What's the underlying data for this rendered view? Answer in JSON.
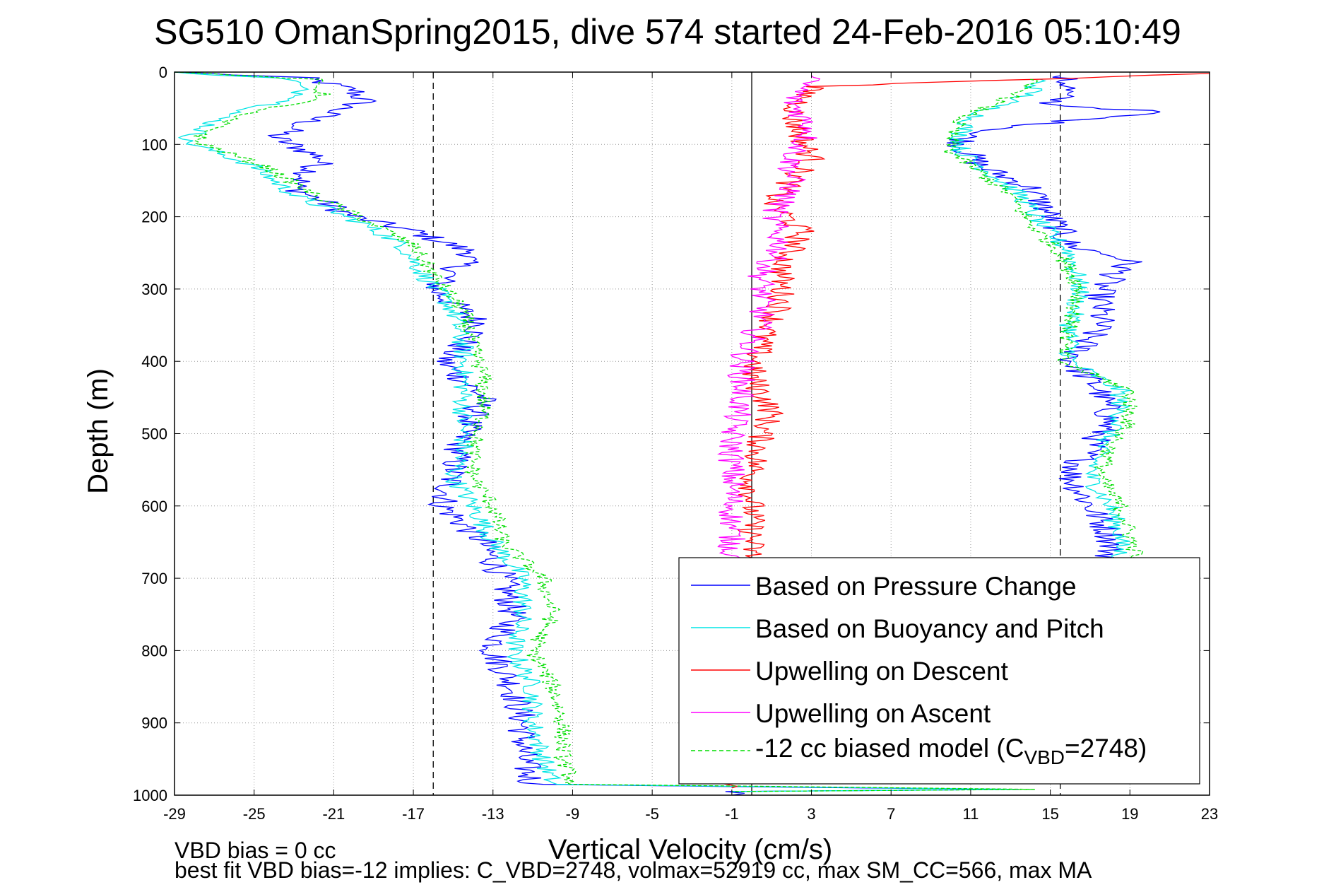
{
  "chart_data": {
    "type": "line",
    "title": "SG510 OmanSpring2015, dive 574 started 24-Feb-2016 05:10:49",
    "xlabel": "Vertical Velocity (cm/s)",
    "ylabel": "Depth (m)",
    "xlim": [
      -29,
      23
    ],
    "ylim": [
      1000,
      0
    ],
    "y_reversed": true,
    "xticks": [
      "-29",
      "-25",
      "-21",
      "-17",
      "-13",
      "-9",
      "-5",
      "-1",
      "3",
      "7",
      "11",
      "15",
      "19",
      "23"
    ],
    "yticks": [
      "0",
      "100",
      "200",
      "300",
      "400",
      "500",
      "600",
      "700",
      "800",
      "900",
      "1000"
    ],
    "grid": true,
    "legend_position": "bottom-right",
    "reference_lines": [
      {
        "x": -16,
        "style": "dashed"
      },
      {
        "x": 15.5,
        "style": "dashed"
      },
      {
        "x": 0,
        "style": "solid"
      }
    ],
    "series": [
      {
        "name": "Based on Pressure Change",
        "color": "#0000ff",
        "style": "solid",
        "points": [
          [
            -29,
            0
          ],
          [
            -22.5,
            8
          ],
          [
            -20,
            25
          ],
          [
            -19.5,
            40
          ],
          [
            -22,
            65
          ],
          [
            -24,
            90
          ],
          [
            -21.5,
            120
          ],
          [
            -23,
            160
          ],
          [
            -20,
            200
          ],
          [
            -17,
            220
          ],
          [
            -14,
            250
          ],
          [
            -16,
            300
          ],
          [
            -13.5,
            350
          ],
          [
            -15.5,
            400
          ],
          [
            -13.5,
            450
          ],
          [
            -14.5,
            500
          ],
          [
            -15,
            550
          ],
          [
            -15.5,
            600
          ],
          [
            -13.5,
            650
          ],
          [
            -12.5,
            700
          ],
          [
            -12,
            750
          ],
          [
            -13,
            800
          ],
          [
            -12,
            850
          ],
          [
            -11.5,
            900
          ],
          [
            -11.5,
            950
          ],
          [
            -11,
            985
          ],
          [
            13,
            992
          ],
          [
            -1,
            995
          ],
          [
            -1,
            1000
          ]
        ],
        "ascent_points": [
          [
            15.5,
            5
          ],
          [
            16,
            20
          ],
          [
            15,
            45
          ],
          [
            20.5,
            55
          ],
          [
            15,
            70
          ],
          [
            11,
            85
          ],
          [
            10.5,
            100
          ],
          [
            11.5,
            130
          ],
          [
            14,
            160
          ],
          [
            15,
            200
          ],
          [
            16,
            240
          ],
          [
            19,
            260
          ],
          [
            17.5,
            300
          ],
          [
            17.5,
            350
          ],
          [
            16,
            400
          ],
          [
            17.5,
            440
          ],
          [
            18,
            480
          ],
          [
            17,
            520
          ],
          [
            16,
            560
          ],
          [
            17,
            600
          ],
          [
            18,
            640
          ],
          [
            18,
            680
          ]
        ]
      },
      {
        "name": "Based on Buoyancy and Pitch",
        "color": "#00e5e5",
        "style": "solid",
        "points": [
          [
            -29,
            0
          ],
          [
            -23,
            10
          ],
          [
            -22.5,
            35
          ],
          [
            -26.5,
            60
          ],
          [
            -28.5,
            95
          ],
          [
            -25,
            130
          ],
          [
            -23,
            170
          ],
          [
            -19.5,
            210
          ],
          [
            -17.5,
            240
          ],
          [
            -16.5,
            280
          ],
          [
            -15,
            330
          ],
          [
            -14.5,
            380
          ],
          [
            -14.5,
            420
          ],
          [
            -14.5,
            480
          ],
          [
            -14.5,
            520
          ],
          [
            -15,
            560
          ],
          [
            -14,
            600
          ],
          [
            -13,
            650
          ],
          [
            -11.5,
            700
          ],
          [
            -11.5,
            750
          ],
          [
            -12,
            800
          ],
          [
            -11,
            850
          ],
          [
            -11,
            900
          ],
          [
            -10.5,
            950
          ],
          [
            -10,
            985
          ],
          [
            13,
            992
          ],
          [
            -1,
            995
          ]
        ],
        "ascent_points": [
          [
            14.5,
            10
          ],
          [
            14,
            30
          ],
          [
            12.5,
            45
          ],
          [
            11,
            65
          ],
          [
            10.5,
            85
          ],
          [
            10.5,
            110
          ],
          [
            12,
            140
          ],
          [
            13.5,
            170
          ],
          [
            14.5,
            210
          ],
          [
            16,
            250
          ],
          [
            16.5,
            300
          ],
          [
            16,
            350
          ],
          [
            16,
            400
          ],
          [
            18.5,
            440
          ],
          [
            18.5,
            480
          ],
          [
            17.5,
            520
          ],
          [
            17,
            560
          ],
          [
            18,
            600
          ],
          [
            18.5,
            640
          ],
          [
            18.5,
            680
          ]
        ]
      },
      {
        "name": "Upwelling on Descent",
        "color": "#ff0000",
        "style": "solid",
        "points": [
          [
            23,
            2
          ],
          [
            3,
            20
          ],
          [
            2,
            60
          ],
          [
            3,
            120
          ],
          [
            1,
            180
          ],
          [
            2.5,
            220
          ],
          [
            1.5,
            270
          ],
          [
            1.5,
            320
          ],
          [
            0.5,
            370
          ],
          [
            0,
            420
          ],
          [
            1,
            470
          ],
          [
            0.5,
            500
          ],
          [
            0.2,
            540
          ],
          [
            0,
            560
          ],
          [
            0,
            620
          ],
          [
            0,
            680
          ],
          [
            -2,
            860
          ],
          [
            -1,
            990
          ]
        ]
      },
      {
        "name": "Upwelling on Ascent",
        "color": "#ff00ff",
        "style": "solid",
        "points": [
          [
            3,
            5
          ],
          [
            2,
            40
          ],
          [
            3,
            80
          ],
          [
            2,
            120
          ],
          [
            2,
            160
          ],
          [
            1,
            200
          ],
          [
            1.5,
            240
          ],
          [
            0.5,
            280
          ],
          [
            0.5,
            340
          ],
          [
            -0.5,
            400
          ],
          [
            -0.5,
            450
          ],
          [
            -1,
            500
          ],
          [
            -1,
            550
          ],
          [
            -1,
            600
          ],
          [
            -1,
            650
          ],
          [
            -1,
            680
          ]
        ]
      },
      {
        "name": "-12 cc biased model (C_VBD=2748)",
        "color": "#00dd00",
        "style": "dashed",
        "points": [
          [
            -29,
            0
          ],
          [
            -22,
            10
          ],
          [
            -21.5,
            35
          ],
          [
            -26,
            60
          ],
          [
            -28,
            95
          ],
          [
            -24.5,
            130
          ],
          [
            -22,
            170
          ],
          [
            -19,
            210
          ],
          [
            -17,
            240
          ],
          [
            -16,
            280
          ],
          [
            -14.5,
            330
          ],
          [
            -14,
            380
          ],
          [
            -13.5,
            420
          ],
          [
            -13.5,
            480
          ],
          [
            -14,
            520
          ],
          [
            -14,
            560
          ],
          [
            -13,
            600
          ],
          [
            -12.5,
            650
          ],
          [
            -10.5,
            700
          ],
          [
            -10,
            750
          ],
          [
            -11,
            800
          ],
          [
            -10,
            850
          ],
          [
            -9.5,
            900
          ],
          [
            -9.5,
            950
          ],
          [
            -9,
            985
          ],
          [
            14,
            992
          ],
          [
            -1,
            995
          ]
        ],
        "ascent_points": [
          [
            14,
            10
          ],
          [
            13.5,
            30
          ],
          [
            12,
            45
          ],
          [
            10.5,
            65
          ],
          [
            10,
            85
          ],
          [
            10,
            110
          ],
          [
            11.5,
            140
          ],
          [
            13,
            170
          ],
          [
            14,
            210
          ],
          [
            15.5,
            250
          ],
          [
            16.5,
            300
          ],
          [
            16,
            350
          ],
          [
            15.5,
            400
          ],
          [
            19,
            440
          ],
          [
            19,
            480
          ],
          [
            18,
            520
          ],
          [
            17.5,
            560
          ],
          [
            18.5,
            600
          ],
          [
            19,
            640
          ],
          [
            19.5,
            680
          ]
        ]
      }
    ],
    "legend_entries": [
      "Based on Pressure Change",
      "Based on Buoyancy and Pitch",
      "Upwelling on Descent",
      "Upwelling on Ascent"
    ],
    "legend_model_main": "-12 cc biased model (C",
    "legend_model_sub": "VBD",
    "legend_model_tail": "=2748)",
    "footer_line1": "VBD bias = 0 cc",
    "footer_line2": "best fit VBD bias=-12 implies: C_VBD=2748, volmax=52919 cc, max SM_CC=566, max MA"
  }
}
